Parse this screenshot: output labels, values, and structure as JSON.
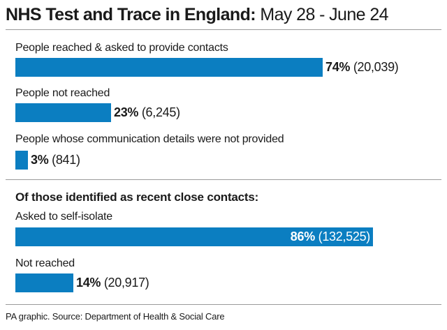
{
  "title": {
    "bold": "NHS Test and Trace in England:",
    "light": "May 28 - June 24"
  },
  "section2_heading": "Of those identified as recent close contacts:",
  "source": "PA graphic. Source: Department of Health & Social Care",
  "colors": {
    "bar": "#0b7ec1",
    "text": "#1a1a1a",
    "rule": "#9a9a9a"
  },
  "chart_data": [
    {
      "type": "bar",
      "orientation": "horizontal",
      "title": "",
      "categories": [
        "People reached & asked to provide contacts",
        "People not reached",
        "People whose communication details were not provided"
      ],
      "values": [
        74,
        23,
        3
      ],
      "counts": [
        "20,039",
        "6,245",
        "841"
      ],
      "value_labels": [
        "74%",
        "23%",
        "3%"
      ],
      "count_labels": [
        "(20,039)",
        "(6,245)",
        "(841)"
      ],
      "xlim": [
        0,
        100
      ],
      "grid": false
    },
    {
      "type": "bar",
      "orientation": "horizontal",
      "title": "Of those identified as recent close contacts:",
      "categories": [
        "Asked to self-isolate",
        "Not reached"
      ],
      "values": [
        86,
        14
      ],
      "counts": [
        "132,525",
        "20,917"
      ],
      "value_labels": [
        "86%",
        "14%"
      ],
      "count_labels": [
        "(132,525)",
        "(20,917)"
      ],
      "xlim": [
        0,
        100
      ],
      "grid": false
    }
  ]
}
